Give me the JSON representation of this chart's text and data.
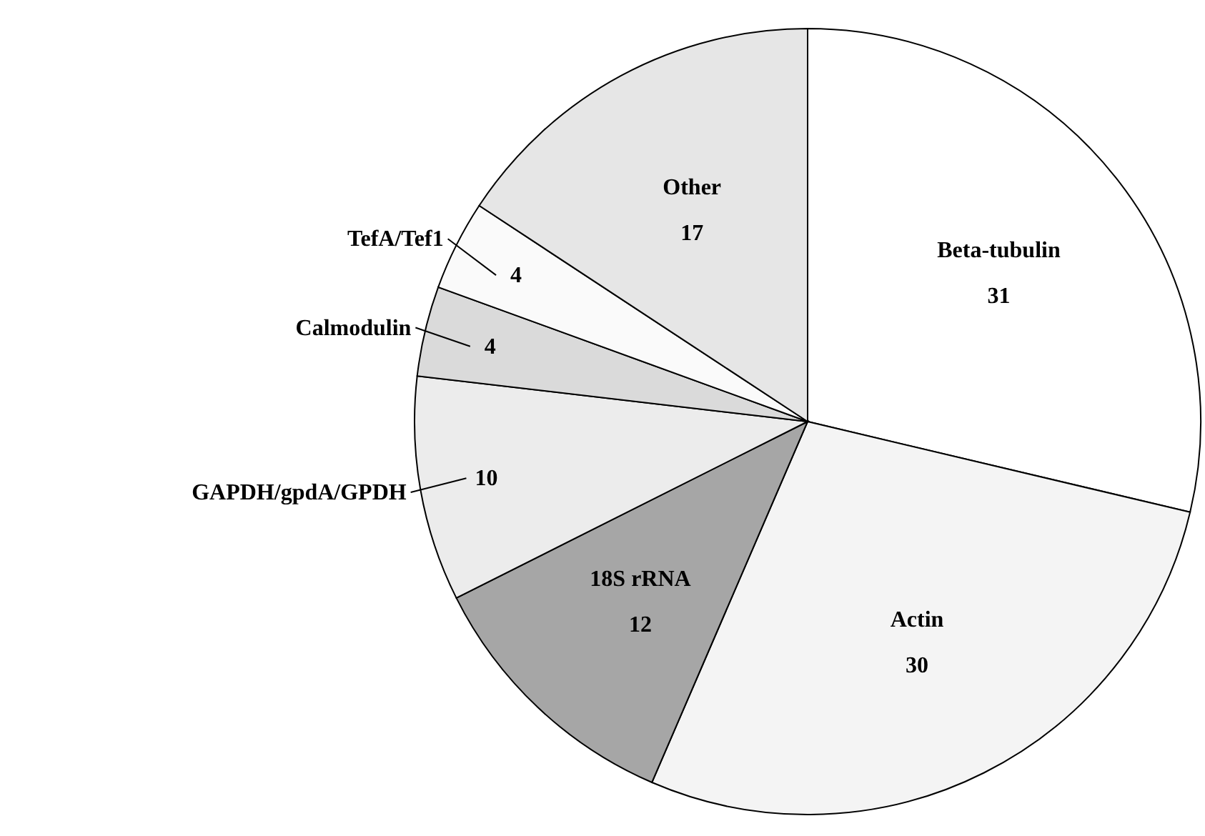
{
  "chart_data": {
    "type": "pie",
    "categories": [
      "Beta-tubulin",
      "Actin",
      "18S rRNA",
      "GAPDH/gpdA/GPDH",
      "Calmodulin",
      "TefA/Tef1",
      "Other"
    ],
    "values": [
      31,
      30,
      12,
      10,
      4,
      4,
      17
    ],
    "colors": [
      "#ffffff",
      "#f4f4f4",
      "#a6a6a6",
      "#ececec",
      "#dadada",
      "#fafafa",
      "#e6e6e6"
    ],
    "data_labels": true
  }
}
